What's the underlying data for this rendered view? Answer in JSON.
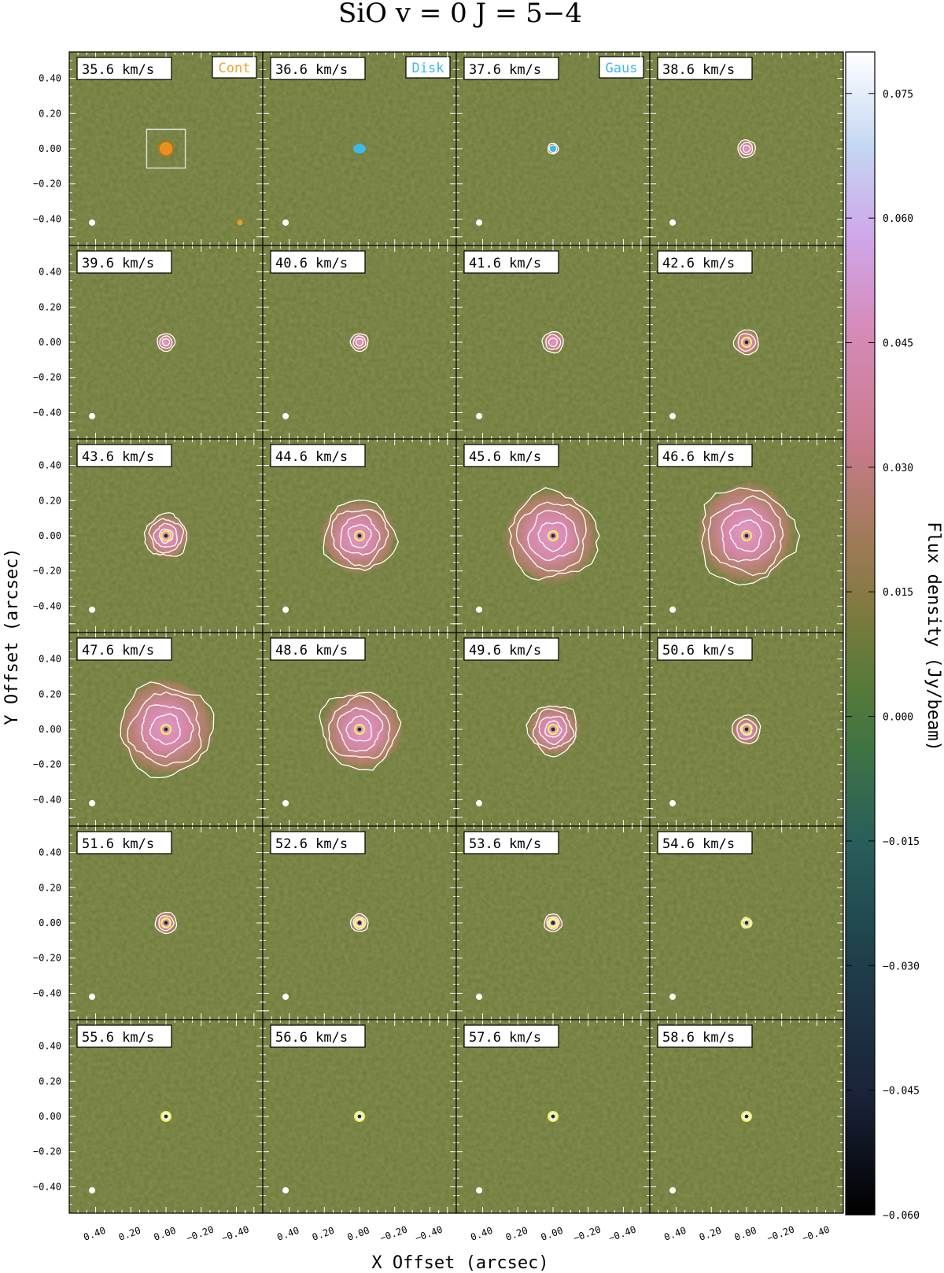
{
  "chart_data": {
    "type": "heatmap",
    "title": "SiO  v = 0  J = 5−4",
    "xlabel": "X Offset (arcsec)",
    "ylabel": "Y Offset (arcsec)",
    "colorbar_label": "Flux density (Jy/beam)",
    "colorbar_range": [
      -0.06,
      0.08
    ],
    "colorbar_ticks": [
      "0.075",
      "0.060",
      "0.045",
      "0.030",
      "0.015",
      "0.000",
      "−0.015",
      "−0.030",
      "−0.045",
      "−0.060"
    ],
    "colorbar_tick_values": [
      0.075,
      0.06,
      0.045,
      0.03,
      0.015,
      0.0,
      -0.015,
      -0.03,
      -0.045,
      -0.06
    ],
    "xticks": [
      "0.40",
      "0.20",
      "0.00",
      "−0.20",
      "−0.40"
    ],
    "xtick_values": [
      0.4,
      0.2,
      0.0,
      -0.2,
      -0.4
    ],
    "yticks": [
      "0.40",
      "0.20",
      "0.00",
      "−0.20",
      "−0.40"
    ],
    "ytick_values": [
      0.4,
      0.2,
      0.0,
      -0.2,
      -0.4
    ],
    "axis_range": [
      -0.55,
      0.55
    ],
    "grid_rows": 6,
    "grid_cols": 4,
    "colormap": [
      "#000000",
      "#1e2a40",
      "#285e5a",
      "#4a7a3c",
      "#6e7a36",
      "#b07a5c",
      "#d680a0",
      "#d8a0e8",
      "#c0d0f0",
      "#ffffff"
    ],
    "legend_tags": [
      {
        "panel": 0,
        "label": "Cont",
        "color": "#f0a030"
      },
      {
        "panel": 1,
        "label": "Disk",
        "color": "#40b8e8"
      },
      {
        "panel": 2,
        "label": "Gaus",
        "color": "#40b8e8"
      }
    ],
    "panels": [
      {
        "label": "35.6 km/s",
        "extent": 0.02,
        "peak": 0.0
      },
      {
        "label": "36.6 km/s",
        "extent": 0.02,
        "peak": 0.0
      },
      {
        "label": "37.6 km/s",
        "extent": 0.03,
        "peak": 0.03
      },
      {
        "label": "38.6 km/s",
        "extent": 0.05,
        "peak": 0.035
      },
      {
        "label": "39.6 km/s",
        "extent": 0.05,
        "peak": 0.035
      },
      {
        "label": "40.6 km/s",
        "extent": 0.05,
        "peak": 0.035
      },
      {
        "label": "41.6 km/s",
        "extent": 0.06,
        "peak": 0.035
      },
      {
        "label": "42.6 km/s",
        "extent": 0.07,
        "peak": 0.035
      },
      {
        "label": "43.6 km/s",
        "extent": 0.12,
        "peak": 0.035
      },
      {
        "label": "44.6 km/s",
        "extent": 0.2,
        "peak": 0.035
      },
      {
        "label": "45.6 km/s",
        "extent": 0.25,
        "peak": 0.035
      },
      {
        "label": "46.6 km/s",
        "extent": 0.27,
        "peak": 0.035
      },
      {
        "label": "47.6 km/s",
        "extent": 0.26,
        "peak": 0.035
      },
      {
        "label": "48.6 km/s",
        "extent": 0.22,
        "peak": 0.035
      },
      {
        "label": "49.6 km/s",
        "extent": 0.14,
        "peak": 0.035
      },
      {
        "label": "50.6 km/s",
        "extent": 0.08,
        "peak": 0.035
      },
      {
        "label": "51.6 km/s",
        "extent": 0.06,
        "peak": 0.035
      },
      {
        "label": "52.6 km/s",
        "extent": 0.05,
        "peak": 0.035
      },
      {
        "label": "53.6 km/s",
        "extent": 0.05,
        "peak": 0.03
      },
      {
        "label": "54.6 km/s",
        "extent": 0.03,
        "peak": 0.02
      },
      {
        "label": "55.6 km/s",
        "extent": 0.02,
        "peak": 0.01
      },
      {
        "label": "56.6 km/s",
        "extent": 0.02,
        "peak": 0.005
      },
      {
        "label": "57.6 km/s",
        "extent": 0.02,
        "peak": -0.02
      },
      {
        "label": "58.6 km/s",
        "extent": 0.02,
        "peak": 0.0
      }
    ]
  }
}
